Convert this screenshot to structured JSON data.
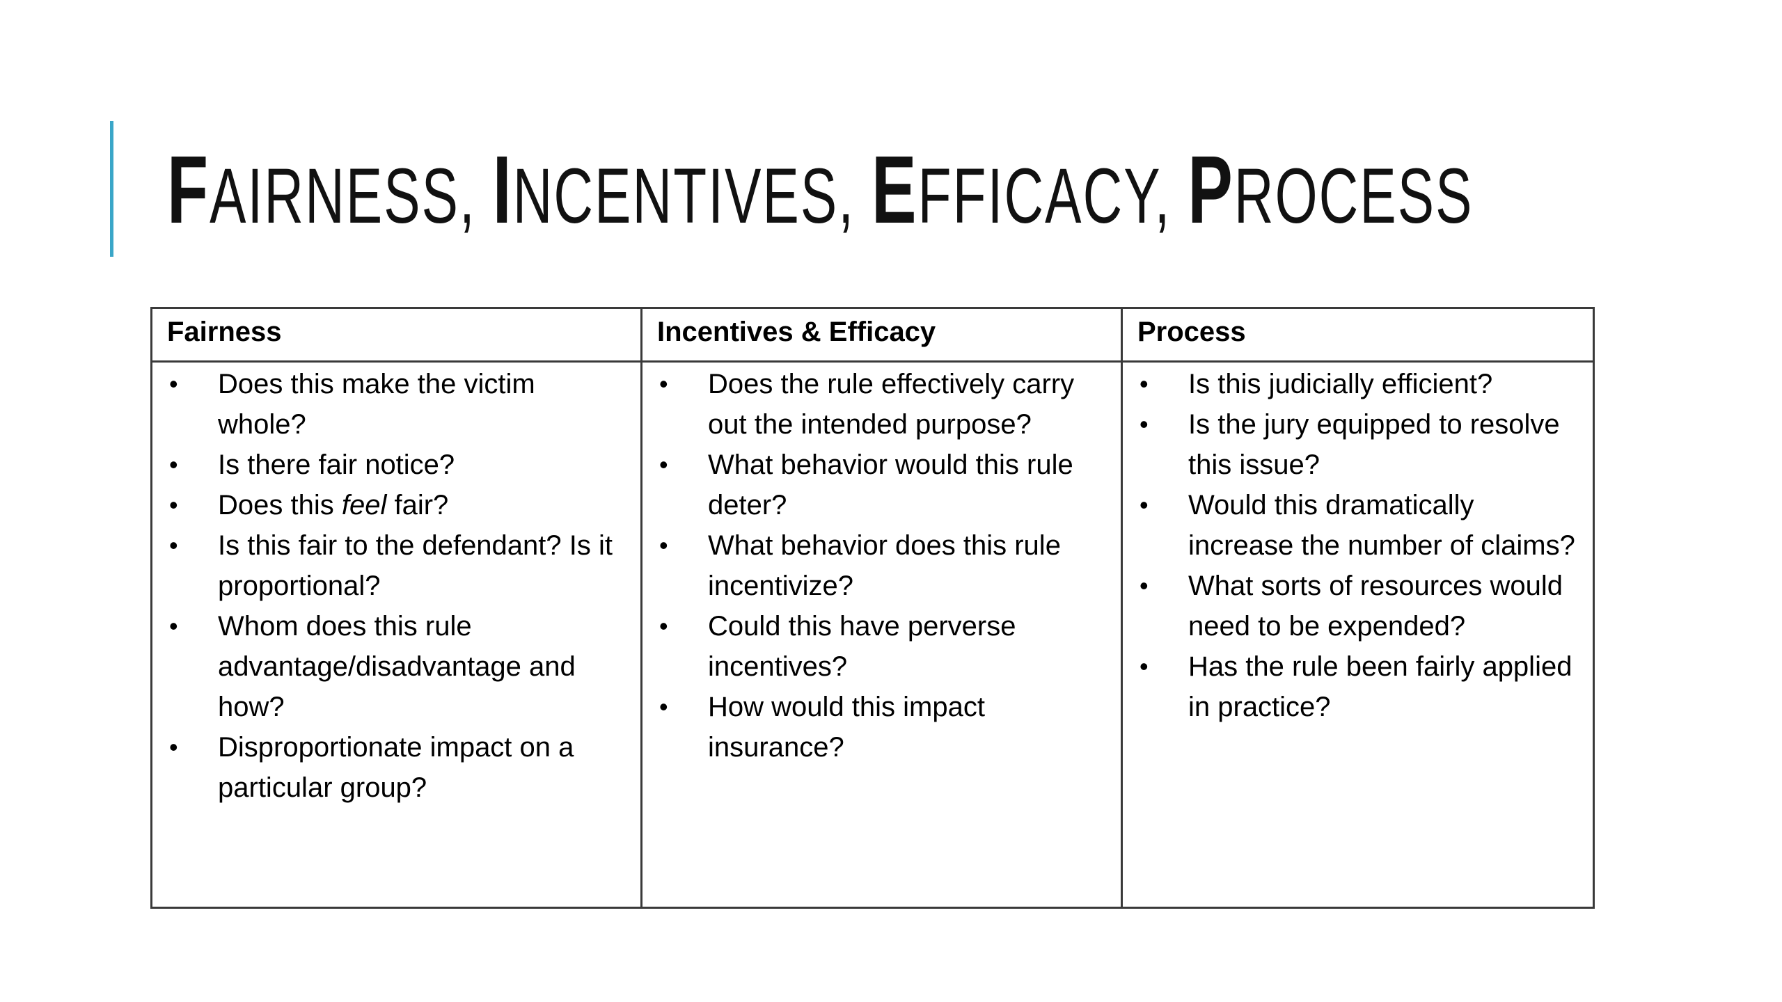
{
  "title": {
    "parts": [
      {
        "cap": "F",
        "rest": "AIRNESS, "
      },
      {
        "cap": "I",
        "rest": "NCENTIVES, "
      },
      {
        "cap": "E",
        "rest": "FFICACY, "
      },
      {
        "cap": "P",
        "rest": "ROCESS"
      }
    ]
  },
  "colors": {
    "accent_bar": "#3aa6c8",
    "table_border": "#3a3a3a",
    "text": "#000000"
  },
  "table": {
    "headers": [
      "Fairness",
      "Incentives & Efficacy",
      "Process"
    ],
    "bullet_glyph": "•",
    "columns": [
      {
        "items": [
          {
            "text": "Does this make the victim whole?"
          },
          {
            "text": "Is there fair notice?"
          },
          {
            "before": "Does this ",
            "emphasis": "feel",
            "after": " fair?"
          },
          {
            "text": "Is this fair to the defendant? Is it proportional?"
          },
          {
            "text": "Whom does this rule advantage/disadvantage and how?"
          },
          {
            "text": "Disproportionate impact on a particular group?"
          }
        ]
      },
      {
        "items": [
          {
            "text": "Does the rule effectively carry out the intended purpose?"
          },
          {
            "text": "What behavior would this rule deter?"
          },
          {
            "text": "What behavior does this rule incentivize?"
          },
          {
            "text": "Could this have perverse incentives?"
          },
          {
            "text": "How would this impact insurance?"
          }
        ]
      },
      {
        "items": [
          {
            "text": "Is this judicially efficient?"
          },
          {
            "text": "Is the jury equipped to resolve this issue?"
          },
          {
            "text": "Would this dramatically increase the number of claims?"
          },
          {
            "text": "What sorts of resources would need to be expended?"
          },
          {
            "text": "Has the rule been fairly applied in practice?"
          }
        ]
      }
    ]
  }
}
